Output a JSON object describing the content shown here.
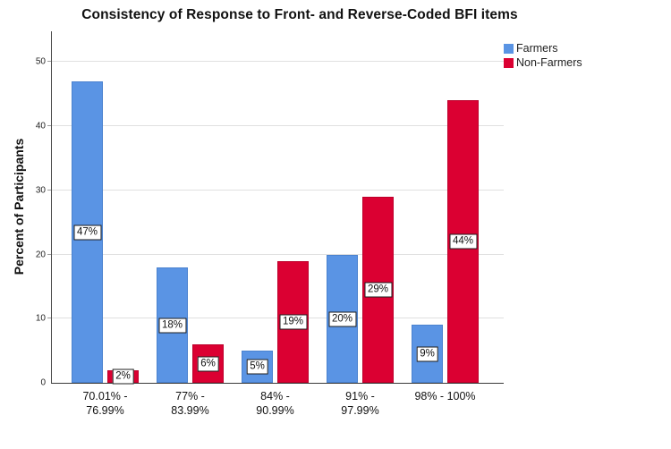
{
  "chart_data": {
    "type": "bar",
    "title": "Consistency of Response to Front- and Reverse-Coded BFI items",
    "xlabel": "",
    "ylabel": "Percent of Participants",
    "categories": [
      [
        "70.01% -",
        "76.99%"
      ],
      [
        "77% -",
        "83.99%"
      ],
      [
        "84% -",
        "90.99%"
      ],
      [
        "91% -",
        "97.99%"
      ],
      [
        "98% - 100%"
      ]
    ],
    "series": [
      {
        "name": "Farmers",
        "color": "#5a94e4",
        "values": [
          47,
          18,
          5,
          20,
          9
        ],
        "labels": [
          "47%",
          "18%",
          "5%",
          "20%",
          "9%"
        ]
      },
      {
        "name": "Non-Farmers",
        "color": "#db0032",
        "values": [
          2,
          6,
          19,
          29,
          44
        ],
        "labels": [
          "2%",
          "6%",
          "19%",
          "29%",
          "44%"
        ]
      }
    ],
    "y_ticks": [
      0,
      10,
      20,
      30,
      40,
      50
    ],
    "ylim": [
      0,
      54.8
    ],
    "grid": "horizontal-light",
    "legend_position": "top-right",
    "value_label_style": "boxed-at-mid-bar"
  }
}
